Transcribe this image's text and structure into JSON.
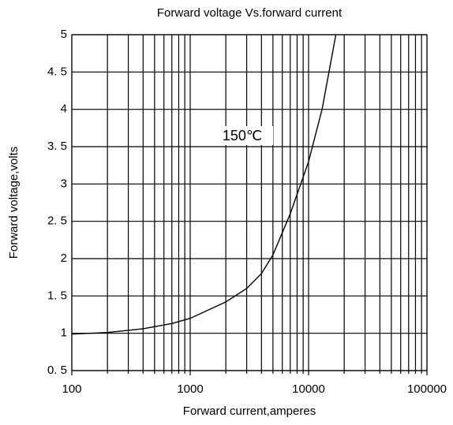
{
  "chart_data": {
    "type": "line",
    "title": "Forward voltage Vs.forward current",
    "x_label": "Forward current,amperes",
    "y_label": "Forward voltage,volts",
    "annotations": [
      "150℃"
    ],
    "x": [
      100,
      200,
      400,
      700,
      1000,
      2000,
      3000,
      4000,
      5000,
      7000,
      10000,
      13000,
      17000
    ],
    "series": [
      {
        "name": "150℃",
        "color": "#000000",
        "values": [
          0.99,
          1.01,
          1.06,
          1.13,
          1.2,
          1.42,
          1.6,
          1.8,
          2.05,
          2.6,
          3.3,
          4.0,
          5.0
        ]
      }
    ],
    "xscale": "log",
    "xlim": [
      100,
      100000
    ],
    "xticks": [
      100,
      1000,
      10000,
      100000
    ],
    "ylim": [
      0.5,
      5
    ],
    "yticks": [
      {
        "value": 0.5,
        "label": "0. 5"
      },
      1,
      {
        "value": 1.5,
        "label": "1. 5"
      },
      2,
      {
        "value": 2.5,
        "label": "2. 5"
      },
      3,
      {
        "value": 3.5,
        "label": "3. 5"
      },
      4,
      {
        "value": 4.5,
        "label": "4. 5"
      },
      5
    ],
    "grid": true
  }
}
